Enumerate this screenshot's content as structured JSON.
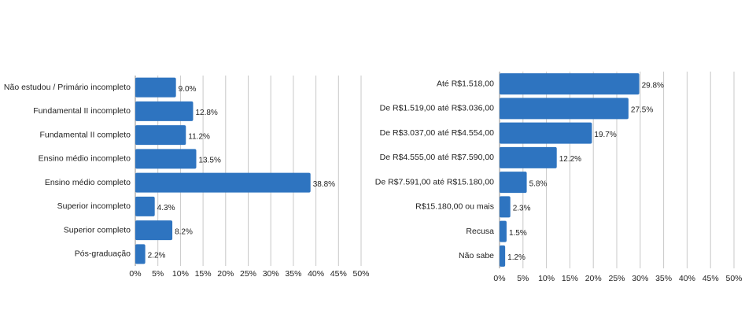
{
  "chart_data": [
    {
      "type": "bar",
      "orientation": "horizontal",
      "categories": [
        "Não estudou / Primário incompleto",
        "Fundamental II incompleto",
        "Fundamental II completo",
        "Ensino médio incompleto",
        "Ensino médio completo",
        "Superior incompleto",
        "Superior completo",
        "Pós-graduação"
      ],
      "values": [
        9.0,
        12.8,
        11.2,
        13.5,
        38.8,
        4.3,
        8.2,
        2.2
      ],
      "value_labels": [
        "9.0%",
        "12.8%",
        "11.2%",
        "13.5%",
        "38.8%",
        "4.3%",
        "8.2%",
        "2.2%"
      ],
      "xlim": [
        0,
        50
      ],
      "ticks": [
        "0%",
        "5%",
        "10%",
        "15%",
        "20%",
        "25%",
        "30%",
        "35%",
        "40%",
        "45%",
        "50%"
      ],
      "grid": true,
      "color": "#2e74c0"
    },
    {
      "type": "bar",
      "orientation": "horizontal",
      "categories": [
        "Até R$1.518,00",
        "De R$1.519,00 até R$3.036,00",
        "De R$3.037,00 até R$4.554,00",
        "De R$4.555,00 até R$7.590,00",
        "De R$7.591,00 até R$15.180,00",
        "R$15.180,00 ou mais",
        "Recusa",
        "Não sabe"
      ],
      "values": [
        29.8,
        27.5,
        19.7,
        12.2,
        5.8,
        2.3,
        1.5,
        1.2
      ],
      "value_labels": [
        "29.8%",
        "27.5%",
        "19.7%",
        "12.2%",
        "5.8%",
        "2.3%",
        "1.5%",
        "1.2%"
      ],
      "xlim": [
        0,
        50
      ],
      "ticks": [
        "0%",
        "5%",
        "10%",
        "15%",
        "20%",
        "25%",
        "30%",
        "35%",
        "40%",
        "45%",
        "50%"
      ],
      "grid": true,
      "color": "#2e74c0"
    }
  ]
}
